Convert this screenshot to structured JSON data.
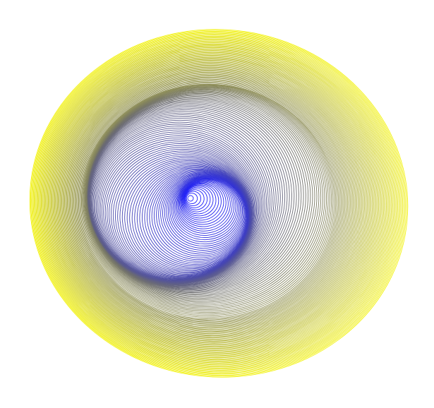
{
  "artwork": {
    "kind": "nested-ellipse-spiral",
    "background_color": "#ffffff",
    "inner_color": "#1a1aff",
    "middle_color": "#6e6e6e",
    "outer_color": "#f2f20a",
    "ring_count": 150
  }
}
